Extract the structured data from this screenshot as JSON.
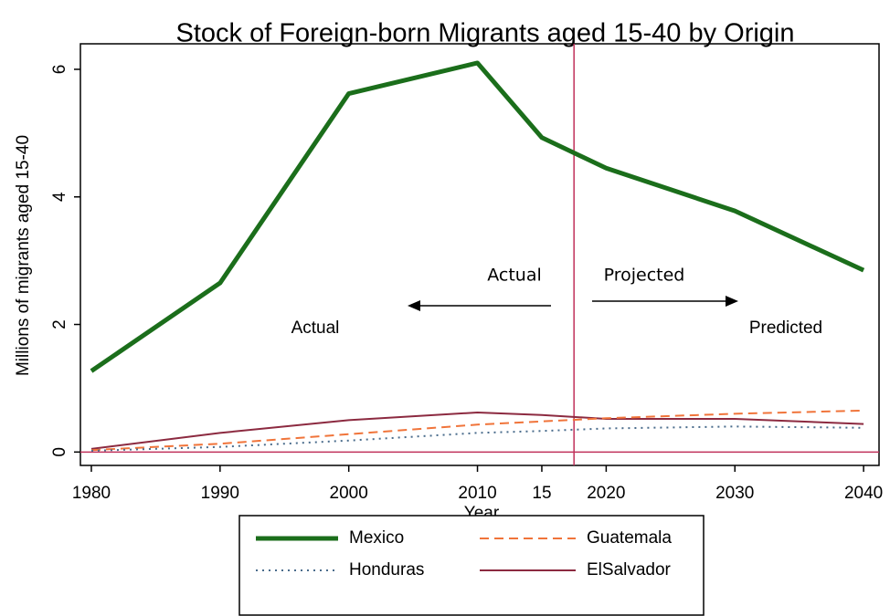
{
  "chart_data": {
    "type": "line",
    "title": "Stock of Foreign-born Migrants aged 15-40 by Origin",
    "x_label": "Year",
    "y_label": "Millions of migrants aged 15-40",
    "x": [
      1980,
      1990,
      2000,
      2010,
      2015,
      2020,
      2030,
      2040
    ],
    "series": [
      {
        "name": "Mexico",
        "color": "#1b6e1b",
        "style": "solid",
        "width": 5,
        "values": [
          1.27,
          2.65,
          5.62,
          6.1,
          4.93,
          4.45,
          3.78,
          2.85
        ]
      },
      {
        "name": "Guatemala",
        "color": "#f0743a",
        "style": "dashed",
        "width": 2,
        "values": [
          0.03,
          0.13,
          0.28,
          0.43,
          0.48,
          0.53,
          0.6,
          0.65
        ]
      },
      {
        "name": "Honduras",
        "color": "#4a6c8c",
        "style": "dotted",
        "width": 2,
        "values": [
          0.02,
          0.08,
          0.18,
          0.3,
          0.33,
          0.37,
          0.4,
          0.38
        ]
      },
      {
        "name": "ElSalvador",
        "color": "#8c2a40",
        "style": "solid",
        "width": 2,
        "values": [
          0.05,
          0.3,
          0.5,
          0.62,
          0.58,
          0.52,
          0.52,
          0.44
        ]
      }
    ],
    "xlim": [
      1979.15,
      2041.2
    ],
    "ylim": [
      -0.21,
      6.4
    ],
    "xticks": [
      1980,
      1990,
      2000,
      2010,
      {
        "value": 2015,
        "label": "15"
      },
      2020,
      2030,
      2040
    ],
    "yticks": [
      0,
      2,
      4,
      6
    ],
    "vline": 2017.5,
    "hline": 0,
    "reference_color": "#c0305a",
    "annotations": [
      "Actual",
      "Predicted",
      "Actual",
      "Projected"
    ]
  }
}
